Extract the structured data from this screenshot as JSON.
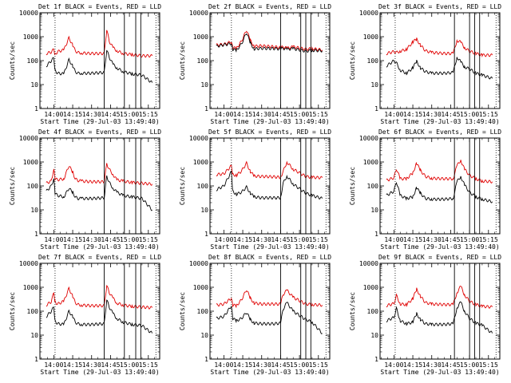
{
  "chart_data": {
    "type": "line",
    "legend_note": "BLACK = Events, RED = LLD",
    "ylabel": "Counts/sec",
    "xlabel": "Start Time (29-Jul-03 13:49:40)",
    "x_tick_labels": [
      "14:00",
      "14:15",
      "14:30",
      "14:45",
      "15:00",
      "15:15"
    ],
    "x_tick_minutes": [
      0,
      15,
      30,
      45,
      60,
      75
    ],
    "xlim_minutes": [
      -11,
      84
    ],
    "ylim": [
      1,
      10000
    ],
    "yscale": "log",
    "y_tick_labels": [
      "1",
      "10",
      "100",
      "1000",
      "10000"
    ],
    "series_colors": {
      "events": "#000000",
      "lld": "#e00000"
    },
    "panels": [
      {
        "title": "Det 1f BLACK = Events, RED = LLD",
        "vlines_dotted": [
          -12,
          1,
          81
        ],
        "vlines_solid": [
          40,
          56,
          65,
          69
        ]
      },
      {
        "title": "Det 2f BLACK = Events, RED = LLD",
        "vlines_dotted": [
          -12,
          6,
          81
        ],
        "vlines_solid": [
          45,
          61,
          65,
          69
        ]
      },
      {
        "title": "Det 3f BLACK = Events, RED = LLD",
        "vlines_dotted": [
          -12,
          1,
          81
        ],
        "vlines_solid": [
          48,
          60,
          64,
          68
        ]
      },
      {
        "title": "Det 4f BLACK = Events, RED = LLD",
        "vlines_dotted": [
          -12,
          1,
          81
        ],
        "vlines_solid": [
          40,
          56,
          65,
          69
        ]
      },
      {
        "title": "Det 5f BLACK = Events, RED = LLD",
        "vlines_dotted": [
          -12,
          6,
          81
        ],
        "vlines_solid": [
          45,
          61,
          65,
          69
        ]
      },
      {
        "title": "Det 6f BLACK = Events, RED = LLD",
        "vlines_dotted": [
          -12,
          1,
          81
        ],
        "vlines_solid": [
          48,
          60,
          64,
          68
        ]
      },
      {
        "title": "Det 7f BLACK = Events, RED = LLD",
        "vlines_dotted": [
          -12,
          1,
          81
        ],
        "vlines_solid": [
          40,
          56,
          65,
          69
        ]
      },
      {
        "title": "Det 8f BLACK = Events, RED = LLD",
        "vlines_dotted": [
          -12,
          6,
          81
        ],
        "vlines_solid": [
          45,
          61,
          65,
          69
        ]
      },
      {
        "title": "Det 9f BLACK = Events, RED = LLD",
        "vlines_dotted": [
          -12,
          1,
          81
        ],
        "vlines_solid": [
          48,
          60,
          64,
          68
        ]
      }
    ],
    "series": [
      {
        "name": "Det 1f LLD",
        "color": "#e00000",
        "x": [
          -6,
          -2,
          0,
          1,
          3,
          8,
          12,
          15,
          17,
          19,
          22,
          30,
          40,
          42,
          44,
          47,
          50,
          55,
          62,
          70,
          78
        ],
        "y": [
          200,
          230,
          300,
          180,
          240,
          280,
          900,
          450,
          260,
          220,
          210,
          200,
          200,
          2000,
          650,
          350,
          260,
          200,
          180,
          160,
          160
        ]
      },
      {
        "name": "Det 1f Events",
        "color": "#000000",
        "x": [
          -6,
          -2,
          0,
          1,
          3,
          8,
          12,
          15,
          17,
          19,
          22,
          30,
          40,
          42,
          44,
          47,
          50,
          55,
          62,
          70,
          78
        ],
        "y": [
          60,
          100,
          130,
          40,
          30,
          28,
          110,
          60,
          35,
          30,
          30,
          30,
          32,
          280,
          140,
          70,
          50,
          35,
          28,
          25,
          12
        ]
      },
      {
        "name": "Det 2f LLD",
        "color": "#e00000",
        "x": [
          -6,
          0,
          6,
          7,
          10,
          14,
          18,
          21,
          24,
          30,
          40,
          45,
          47,
          50,
          55,
          65,
          70,
          78
        ],
        "y": [
          450,
          480,
          620,
          350,
          330,
          650,
          1900,
          700,
          400,
          420,
          380,
          350,
          380,
          330,
          380,
          300,
          320,
          280
        ]
      },
      {
        "name": "Det 2f Events",
        "color": "#000000",
        "x": [
          -6,
          0,
          6,
          7,
          10,
          14,
          18,
          21,
          24,
          30,
          40,
          45,
          47,
          50,
          55,
          65,
          70,
          78
        ],
        "y": [
          400,
          460,
          520,
          300,
          270,
          500,
          1500,
          550,
          310,
          330,
          320,
          310,
          330,
          300,
          320,
          250,
          270,
          260
        ]
      },
      {
        "name": "Det 3f LLD",
        "color": "#e00000",
        "x": [
          -6,
          0,
          2,
          5,
          10,
          15,
          18,
          21,
          25,
          30,
          40,
          47,
          50,
          53,
          56,
          60,
          65,
          70,
          78
        ],
        "y": [
          200,
          240,
          220,
          250,
          300,
          600,
          800,
          450,
          260,
          220,
          200,
          200,
          700,
          600,
          350,
          250,
          200,
          170,
          170
        ]
      },
      {
        "name": "Det 3f Events",
        "color": "#000000",
        "x": [
          -6,
          0,
          2,
          5,
          10,
          15,
          18,
          21,
          25,
          30,
          40,
          47,
          50,
          53,
          56,
          60,
          65,
          70,
          78
        ],
        "y": [
          60,
          100,
          80,
          40,
          30,
          50,
          95,
          50,
          35,
          30,
          30,
          32,
          140,
          90,
          55,
          45,
          30,
          25,
          18
        ]
      },
      {
        "name": "Det 4f LLD",
        "color": "#e00000",
        "x": [
          -6,
          -2,
          0,
          1,
          3,
          8,
          12,
          15,
          17,
          19,
          22,
          30,
          40,
          42,
          44,
          47,
          50,
          55,
          62,
          70,
          78
        ],
        "y": [
          130,
          160,
          500,
          200,
          180,
          200,
          700,
          380,
          200,
          170,
          160,
          150,
          150,
          850,
          500,
          300,
          180,
          160,
          140,
          130,
          120
        ]
      },
      {
        "name": "Det 4f Events",
        "color": "#000000",
        "x": [
          -6,
          -2,
          0,
          1,
          3,
          8,
          12,
          15,
          17,
          19,
          22,
          30,
          40,
          42,
          44,
          47,
          50,
          55,
          62,
          70,
          78
        ],
        "y": [
          60,
          100,
          200,
          50,
          40,
          35,
          80,
          55,
          35,
          30,
          30,
          30,
          32,
          260,
          140,
          80,
          55,
          40,
          35,
          30,
          10
        ]
      },
      {
        "name": "Det 5f LLD",
        "color": "#e00000",
        "x": [
          -6,
          0,
          6,
          7,
          10,
          14,
          18,
          21,
          24,
          30,
          40,
          45,
          47,
          50,
          55,
          65,
          70,
          78
        ],
        "y": [
          300,
          320,
          700,
          300,
          280,
          420,
          900,
          400,
          260,
          250,
          240,
          230,
          400,
          1000,
          500,
          250,
          230,
          220
        ]
      },
      {
        "name": "Det 5f Events",
        "color": "#000000",
        "x": [
          -6,
          0,
          6,
          7,
          10,
          14,
          18,
          21,
          24,
          30,
          40,
          45,
          47,
          50,
          55,
          65,
          70,
          78
        ],
        "y": [
          70,
          100,
          400,
          60,
          45,
          55,
          90,
          50,
          35,
          32,
          32,
          32,
          130,
          260,
          120,
          50,
          40,
          30
        ]
      },
      {
        "name": "Det 6f LLD",
        "color": "#e00000",
        "x": [
          -6,
          0,
          2,
          5,
          10,
          15,
          18,
          21,
          25,
          30,
          40,
          47,
          50,
          53,
          56,
          60,
          65,
          70,
          78
        ],
        "y": [
          170,
          220,
          520,
          200,
          200,
          350,
          900,
          450,
          250,
          210,
          200,
          200,
          700,
          1200,
          500,
          280,
          200,
          160,
          150
        ]
      },
      {
        "name": "Det 6f Events",
        "color": "#000000",
        "x": [
          -6,
          0,
          2,
          5,
          10,
          15,
          18,
          21,
          25,
          30,
          40,
          47,
          50,
          53,
          56,
          60,
          65,
          70,
          78
        ],
        "y": [
          40,
          60,
          150,
          40,
          30,
          35,
          85,
          50,
          30,
          28,
          28,
          30,
          150,
          250,
          110,
          55,
          35,
          28,
          22
        ]
      },
      {
        "name": "Det 7f LLD",
        "color": "#e00000",
        "x": [
          -6,
          -2,
          0,
          1,
          3,
          8,
          12,
          15,
          17,
          19,
          22,
          30,
          40,
          42,
          44,
          47,
          50,
          55,
          62,
          70,
          78
        ],
        "y": [
          180,
          250,
          600,
          250,
          200,
          260,
          900,
          420,
          230,
          190,
          180,
          170,
          170,
          1200,
          600,
          350,
          220,
          180,
          160,
          150,
          140
        ]
      },
      {
        "name": "Det 7f Events",
        "color": "#000000",
        "x": [
          -6,
          -2,
          0,
          1,
          3,
          8,
          12,
          15,
          17,
          19,
          22,
          30,
          40,
          42,
          44,
          47,
          50,
          55,
          62,
          70,
          78
        ],
        "y": [
          60,
          100,
          150,
          40,
          30,
          28,
          100,
          60,
          35,
          30,
          28,
          28,
          30,
          300,
          150,
          80,
          50,
          35,
          28,
          25,
          12
        ]
      },
      {
        "name": "Det 8f LLD",
        "color": "#e00000",
        "x": [
          -6,
          0,
          6,
          7,
          10,
          14,
          18,
          21,
          24,
          30,
          40,
          45,
          47,
          50,
          55,
          65,
          70,
          78
        ],
        "y": [
          180,
          200,
          350,
          180,
          170,
          300,
          800,
          350,
          220,
          200,
          200,
          200,
          500,
          750,
          380,
          200,
          190,
          180
        ]
      },
      {
        "name": "Det 8f Events",
        "color": "#000000",
        "x": [
          -6,
          0,
          6,
          7,
          10,
          14,
          18,
          21,
          24,
          30,
          40,
          45,
          47,
          50,
          55,
          65,
          70,
          78
        ],
        "y": [
          50,
          60,
          170,
          50,
          40,
          50,
          90,
          45,
          32,
          30,
          30,
          32,
          120,
          230,
          100,
          45,
          35,
          12
        ]
      },
      {
        "name": "Det 9f LLD",
        "color": "#e00000",
        "x": [
          -6,
          0,
          2,
          5,
          10,
          15,
          18,
          21,
          25,
          30,
          40,
          47,
          50,
          53,
          56,
          60,
          65,
          70,
          78
        ],
        "y": [
          170,
          210,
          450,
          200,
          190,
          330,
          850,
          420,
          230,
          200,
          190,
          190,
          600,
          1100,
          480,
          260,
          190,
          160,
          150
        ]
      },
      {
        "name": "Det 9f Events",
        "color": "#000000",
        "x": [
          -6,
          0,
          2,
          5,
          10,
          15,
          18,
          21,
          25,
          30,
          40,
          47,
          50,
          53,
          56,
          60,
          65,
          70,
          78
        ],
        "y": [
          40,
          55,
          130,
          40,
          30,
          35,
          80,
          45,
          30,
          28,
          28,
          30,
          140,
          240,
          100,
          50,
          32,
          26,
          12
        ]
      }
    ]
  }
}
